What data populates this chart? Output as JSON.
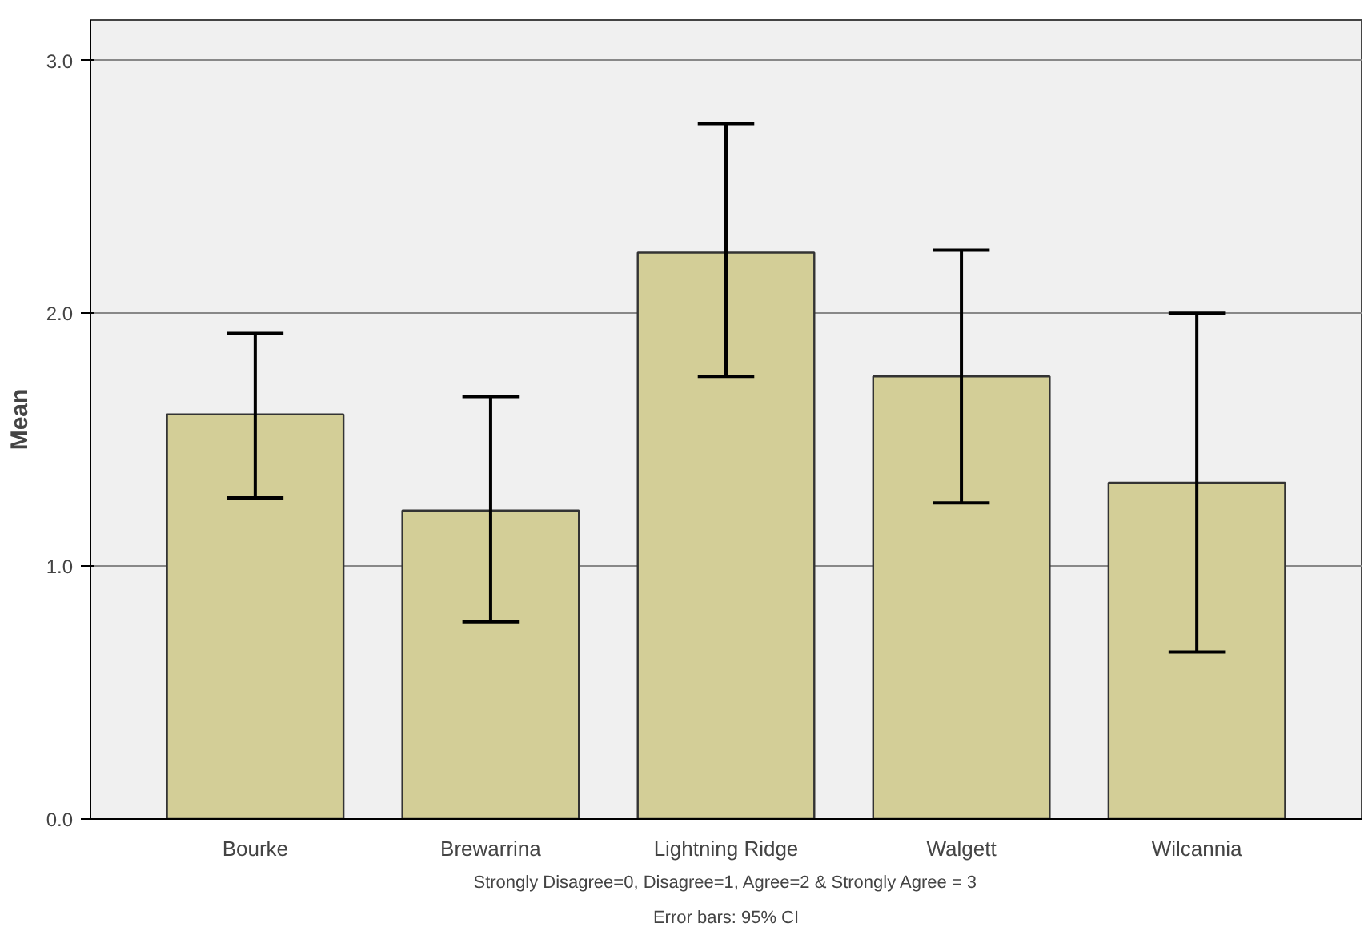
{
  "chart_data": {
    "type": "bar",
    "categories": [
      "Bourke",
      "Brewarrina",
      "Lightning Ridge",
      "Walgett",
      "Wilcannia"
    ],
    "values": [
      1.6,
      1.22,
      2.24,
      1.75,
      1.33
    ],
    "errors": [
      [
        1.27,
        1.92
      ],
      [
        0.78,
        1.67
      ],
      [
        1.75,
        2.75
      ],
      [
        1.25,
        2.25
      ],
      [
        0.66,
        2.0
      ]
    ],
    "color": "#d3ce97",
    "ylabel": "Mean",
    "xlabel": "Strongly Disagree=0, Disagree=1, Agree=2 & Strongly Agree = 3",
    "annotations": [
      "Error bars: 95% CI"
    ],
    "ylim": [
      0,
      3.16
    ],
    "yticks": [
      {
        "value": 0,
        "label": "0.0"
      },
      {
        "value": 1,
        "label": "1.0"
      },
      {
        "value": 2,
        "label": "2.0"
      },
      {
        "value": 3,
        "label": "3.0"
      }
    ],
    "grid": "y"
  }
}
